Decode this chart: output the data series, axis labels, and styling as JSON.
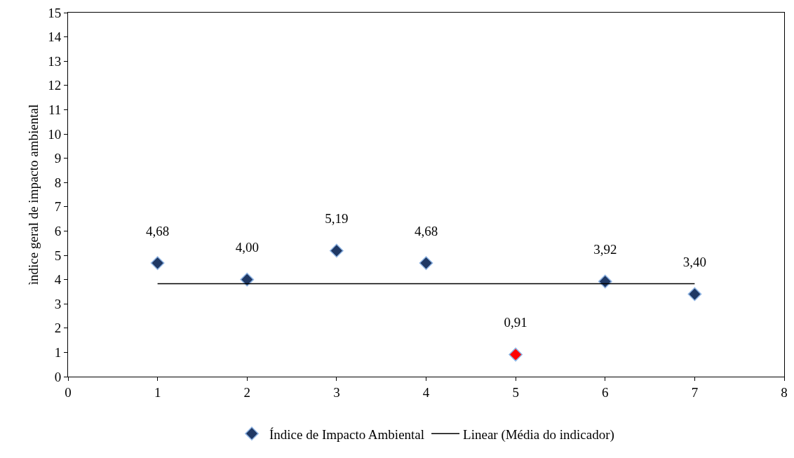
{
  "chart_data": {
    "type": "scatter",
    "ylabel": "ìndice geral de impacto ambiental",
    "x": [
      1,
      2,
      3,
      4,
      5,
      6,
      7
    ],
    "xlim": [
      0,
      8
    ],
    "xticks": [
      0,
      1,
      2,
      3,
      4,
      5,
      6,
      7,
      8
    ],
    "ylim": [
      0,
      15
    ],
    "yticks": [
      0,
      1,
      2,
      3,
      4,
      5,
      6,
      7,
      8,
      9,
      10,
      11,
      12,
      13,
      14,
      15
    ],
    "grid": false,
    "legend": "bottom",
    "marker": "diamond",
    "series": [
      {
        "name": "Índice de Impacto Ambiental",
        "color": "#1f3864",
        "colors": [
          null,
          null,
          null,
          null,
          "#ff0000",
          null,
          null
        ],
        "values": [
          4.68,
          4.0,
          5.19,
          4.68,
          0.91,
          3.92,
          3.4
        ],
        "value_labels": [
          "4,68",
          "4,00",
          "5,19",
          "4,68",
          "0,91",
          "3,92",
          "3,40"
        ]
      },
      {
        "name": "Linear (Média do indicador)",
        "type": "line",
        "color": "#000000",
        "x": [
          1,
          7
        ],
        "values": [
          3.83,
          3.83
        ],
        "line_style": "solid",
        "marker": "none"
      }
    ]
  }
}
